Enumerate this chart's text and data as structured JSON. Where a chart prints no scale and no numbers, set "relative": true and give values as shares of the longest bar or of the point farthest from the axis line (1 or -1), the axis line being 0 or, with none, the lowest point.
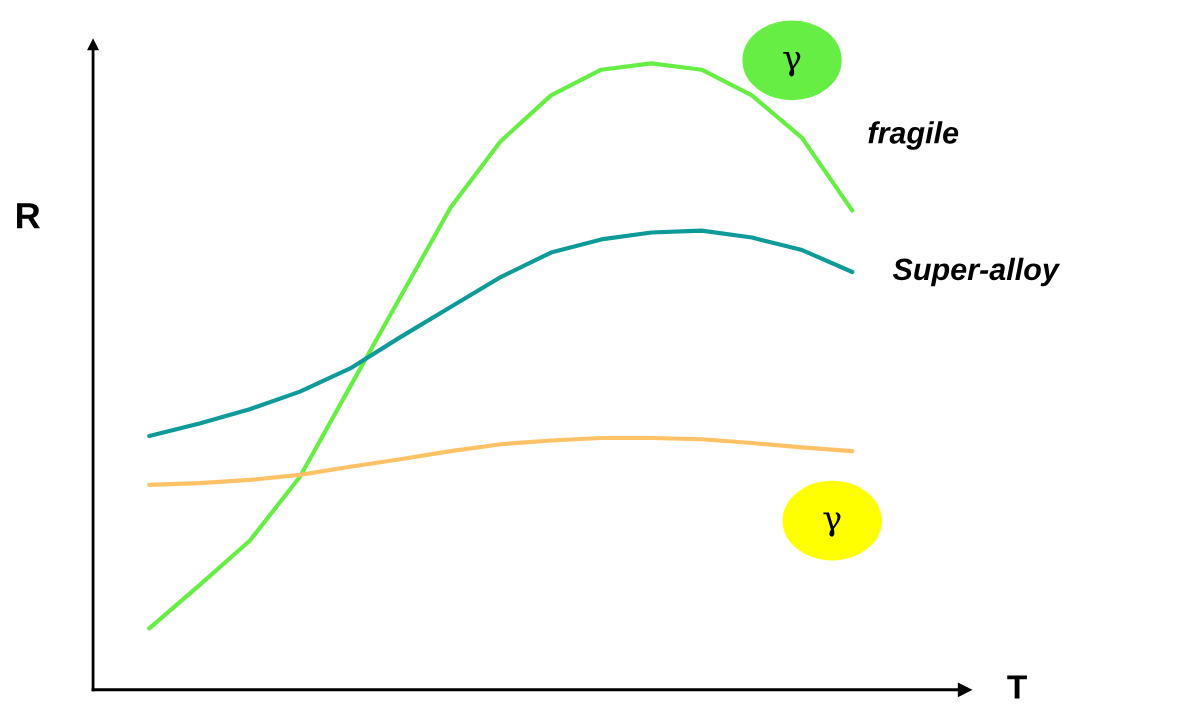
{
  "chart_data": {
    "type": "line",
    "relative": true,
    "xlabel": "T",
    "ylabel": "R",
    "legend": false,
    "marker": "none",
    "line_style": "solid",
    "categories": [
      null,
      null,
      null,
      null,
      null,
      null,
      null,
      null,
      null,
      null,
      null,
      null,
      null,
      null,
      null
    ],
    "series": [
      {
        "name": "fragile",
        "color": "#66ee44",
        "values": [
          0.098,
          0.167,
          0.238,
          0.34,
          0.484,
          0.627,
          0.77,
          0.876,
          0.949,
          0.99,
          1.0,
          0.99,
          0.949,
          0.881,
          0.765
        ]
      },
      {
        "name": "Super-alloy",
        "color": "#0f9a9a",
        "values": [
          0.405,
          0.425,
          0.448,
          0.476,
          0.513,
          0.563,
          0.611,
          0.659,
          0.698,
          0.719,
          0.73,
          0.733,
          0.722,
          0.702,
          0.667
        ]
      },
      {
        "color": "#ffc266",
        "values": [
          0.327,
          0.33,
          0.335,
          0.343,
          0.356,
          0.368,
          0.381,
          0.392,
          0.398,
          0.402,
          0.402,
          0.4,
          0.394,
          0.387,
          0.381
        ]
      }
    ],
    "annotations": [
      "γ",
      "γ"
    ]
  }
}
